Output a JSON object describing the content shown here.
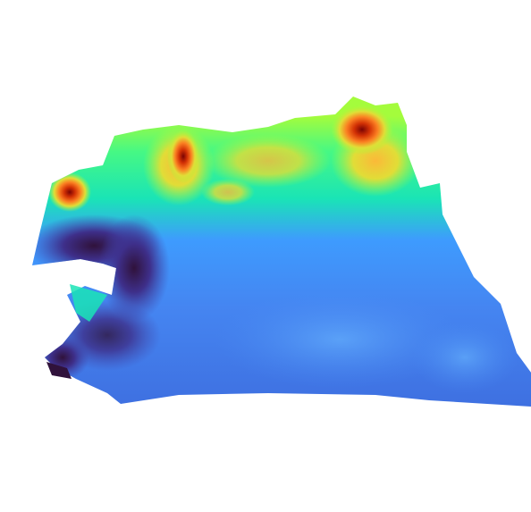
{
  "scene": {
    "type": "3d-terrain-surface",
    "colormap": "turbo",
    "background": "#ffffff",
    "colors": {
      "low": "#30123b",
      "deep_blue": "#3e55c6",
      "blue": "#4585f1",
      "cyan": "#1ae4b6",
      "green": "#a4fc3c",
      "yellow": "#fbb938",
      "orange": "#f66b19",
      "high": "#7a0403"
    }
  }
}
